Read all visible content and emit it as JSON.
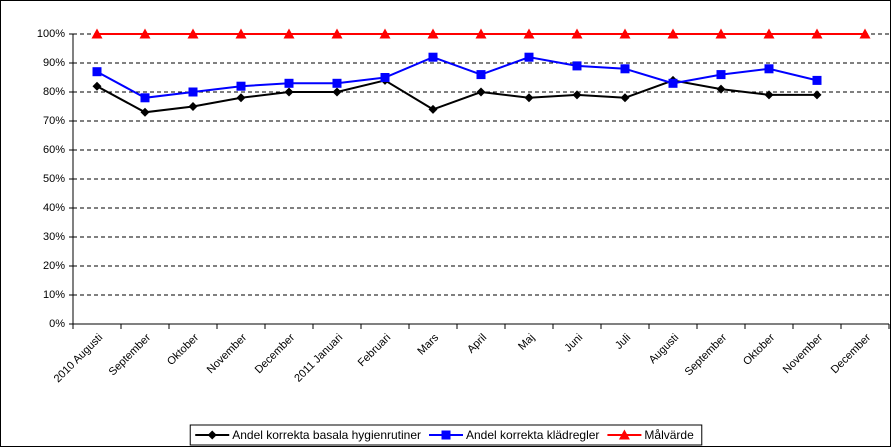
{
  "chart_data": {
    "type": "line",
    "categories": [
      "2010 Augusti",
      "September",
      "Oktober",
      "November",
      "December",
      "2011 Januari",
      "Februari",
      "Mars",
      "April",
      "Maj",
      "Juni",
      "Juli",
      "Augusti",
      "September",
      "Oktober",
      "November",
      "December"
    ],
    "series": [
      {
        "name": "Andel korrekta basala hygienrutiner",
        "color": "#000000",
        "marker": "diamond",
        "values": [
          82,
          73,
          75,
          78,
          80,
          80,
          84,
          74,
          80,
          78,
          79,
          78,
          84,
          81,
          79,
          79,
          null
        ]
      },
      {
        "name": "Andel korrekta klädregler",
        "color": "#0000ff",
        "marker": "square",
        "values": [
          87,
          78,
          80,
          82,
          83,
          83,
          85,
          92,
          86,
          92,
          89,
          88,
          83,
          86,
          88,
          84,
          null
        ]
      },
      {
        "name": "Målvärde",
        "color": "#ff0000",
        "marker": "triangle",
        "values": [
          100,
          100,
          100,
          100,
          100,
          100,
          100,
          100,
          100,
          100,
          100,
          100,
          100,
          100,
          100,
          100,
          100
        ]
      }
    ],
    "ylim": [
      0,
      100
    ],
    "yticks": [
      {
        "value": 0,
        "label": "0%"
      },
      {
        "value": 10,
        "label": "10%"
      },
      {
        "value": 20,
        "label": "20%"
      },
      {
        "value": 30,
        "label": "30%"
      },
      {
        "value": 40,
        "label": "40%"
      },
      {
        "value": 50,
        "label": "50%"
      },
      {
        "value": 60,
        "label": "60%"
      },
      {
        "value": 70,
        "label": "70%"
      },
      {
        "value": 80,
        "label": "80%"
      },
      {
        "value": 90,
        "label": "90%"
      },
      {
        "value": 100,
        "label": "100%"
      }
    ],
    "grid": true,
    "legend": "bottom"
  }
}
